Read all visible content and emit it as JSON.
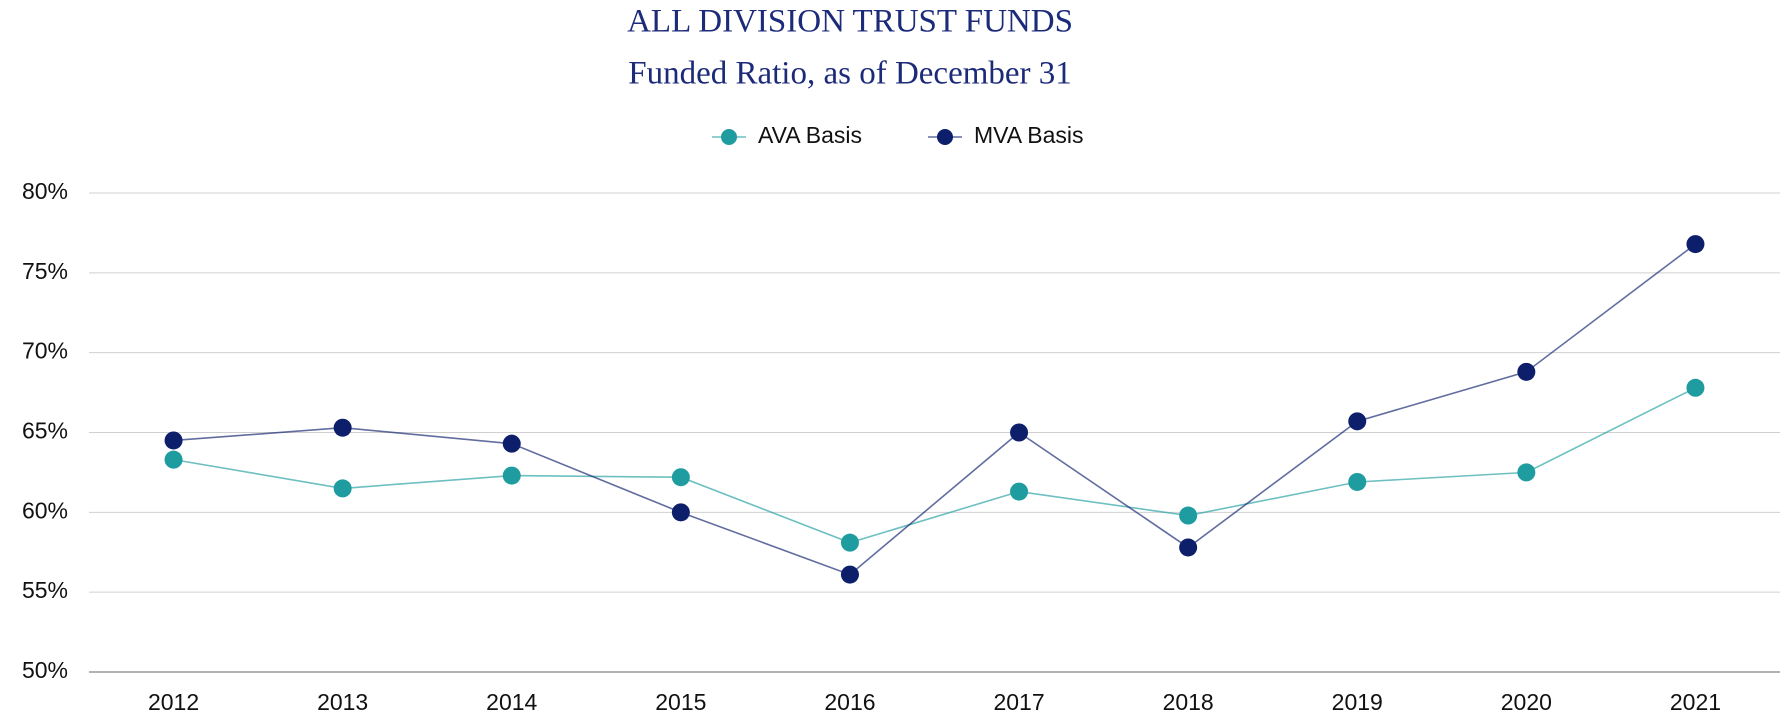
{
  "chart_data": {
    "type": "line",
    "title": "ALL DIVISION TRUST FUNDS",
    "subtitle": "Funded Ratio, as of December 31",
    "categories": [
      "2012",
      "2013",
      "2014",
      "2015",
      "2016",
      "2017",
      "2018",
      "2019",
      "2020",
      "2021"
    ],
    "series": [
      {
        "name": "AVA Basis",
        "color": "#1f9ca0",
        "values": [
          63.3,
          61.5,
          62.3,
          62.2,
          58.1,
          61.3,
          59.8,
          61.9,
          62.5,
          67.8
        ]
      },
      {
        "name": "MVA Basis",
        "color": "#0d1e6b",
        "values": [
          64.5,
          65.3,
          64.3,
          60.0,
          56.1,
          65.0,
          57.8,
          65.7,
          68.8,
          76.8
        ]
      }
    ],
    "ylim": [
      50,
      80
    ],
    "yticks": [
      {
        "value": 50,
        "label": "50%"
      },
      {
        "value": 55,
        "label": "55%"
      },
      {
        "value": 60,
        "label": "60%"
      },
      {
        "value": 65,
        "label": "65%"
      },
      {
        "value": 70,
        "label": "70%"
      },
      {
        "value": 75,
        "label": "75%"
      },
      {
        "value": 80,
        "label": "80%"
      }
    ],
    "grid": true,
    "legend": "top"
  }
}
